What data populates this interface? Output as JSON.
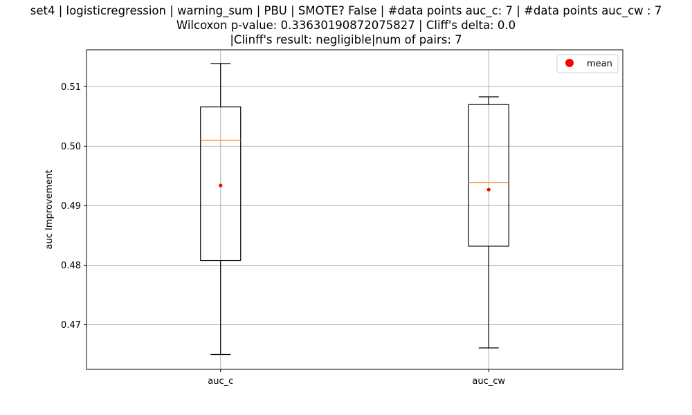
{
  "chart_data": {
    "type": "box",
    "title_lines": [
      "set4 | logisticregression | warning_sum | PBU | SMOTE? False | #data points auc_c: 7 | #data points auc_cw : 7",
      "Wilcoxon p-value: 0.33630190872075827 | Cliff's delta: 0.0",
      "|Clinff's result: negligible|num of pairs: 7"
    ],
    "xlabel": "",
    "ylabel": "auc Improvement",
    "ylim": [
      0.4625,
      0.5162
    ],
    "yticks": [
      0.47,
      0.48,
      0.49,
      0.5,
      0.51
    ],
    "ytick_labels": [
      "0.47",
      "0.48",
      "0.49",
      "0.50",
      "0.51"
    ],
    "grid": true,
    "legend": {
      "placement": "top-right",
      "entries": [
        {
          "label": "mean",
          "color": "#ff0000",
          "marker": "circle"
        }
      ]
    },
    "categories": [
      "auc_c",
      "auc_cw"
    ],
    "boxes": [
      {
        "name": "auc_c",
        "whisker_low": 0.465,
        "q1": 0.4808,
        "median": 0.501,
        "q3": 0.5066,
        "whisker_high": 0.5139,
        "mean": 0.4934
      },
      {
        "name": "auc_cw",
        "whisker_low": 0.4661,
        "q1": 0.4832,
        "median": 0.4939,
        "q3": 0.507,
        "whisker_high": 0.5083,
        "mean": 0.4927
      }
    ],
    "colors": {
      "box": "#000000",
      "median": "#ff7f0e",
      "mean": "#ff0000",
      "grid": "#b0b0b0"
    }
  }
}
